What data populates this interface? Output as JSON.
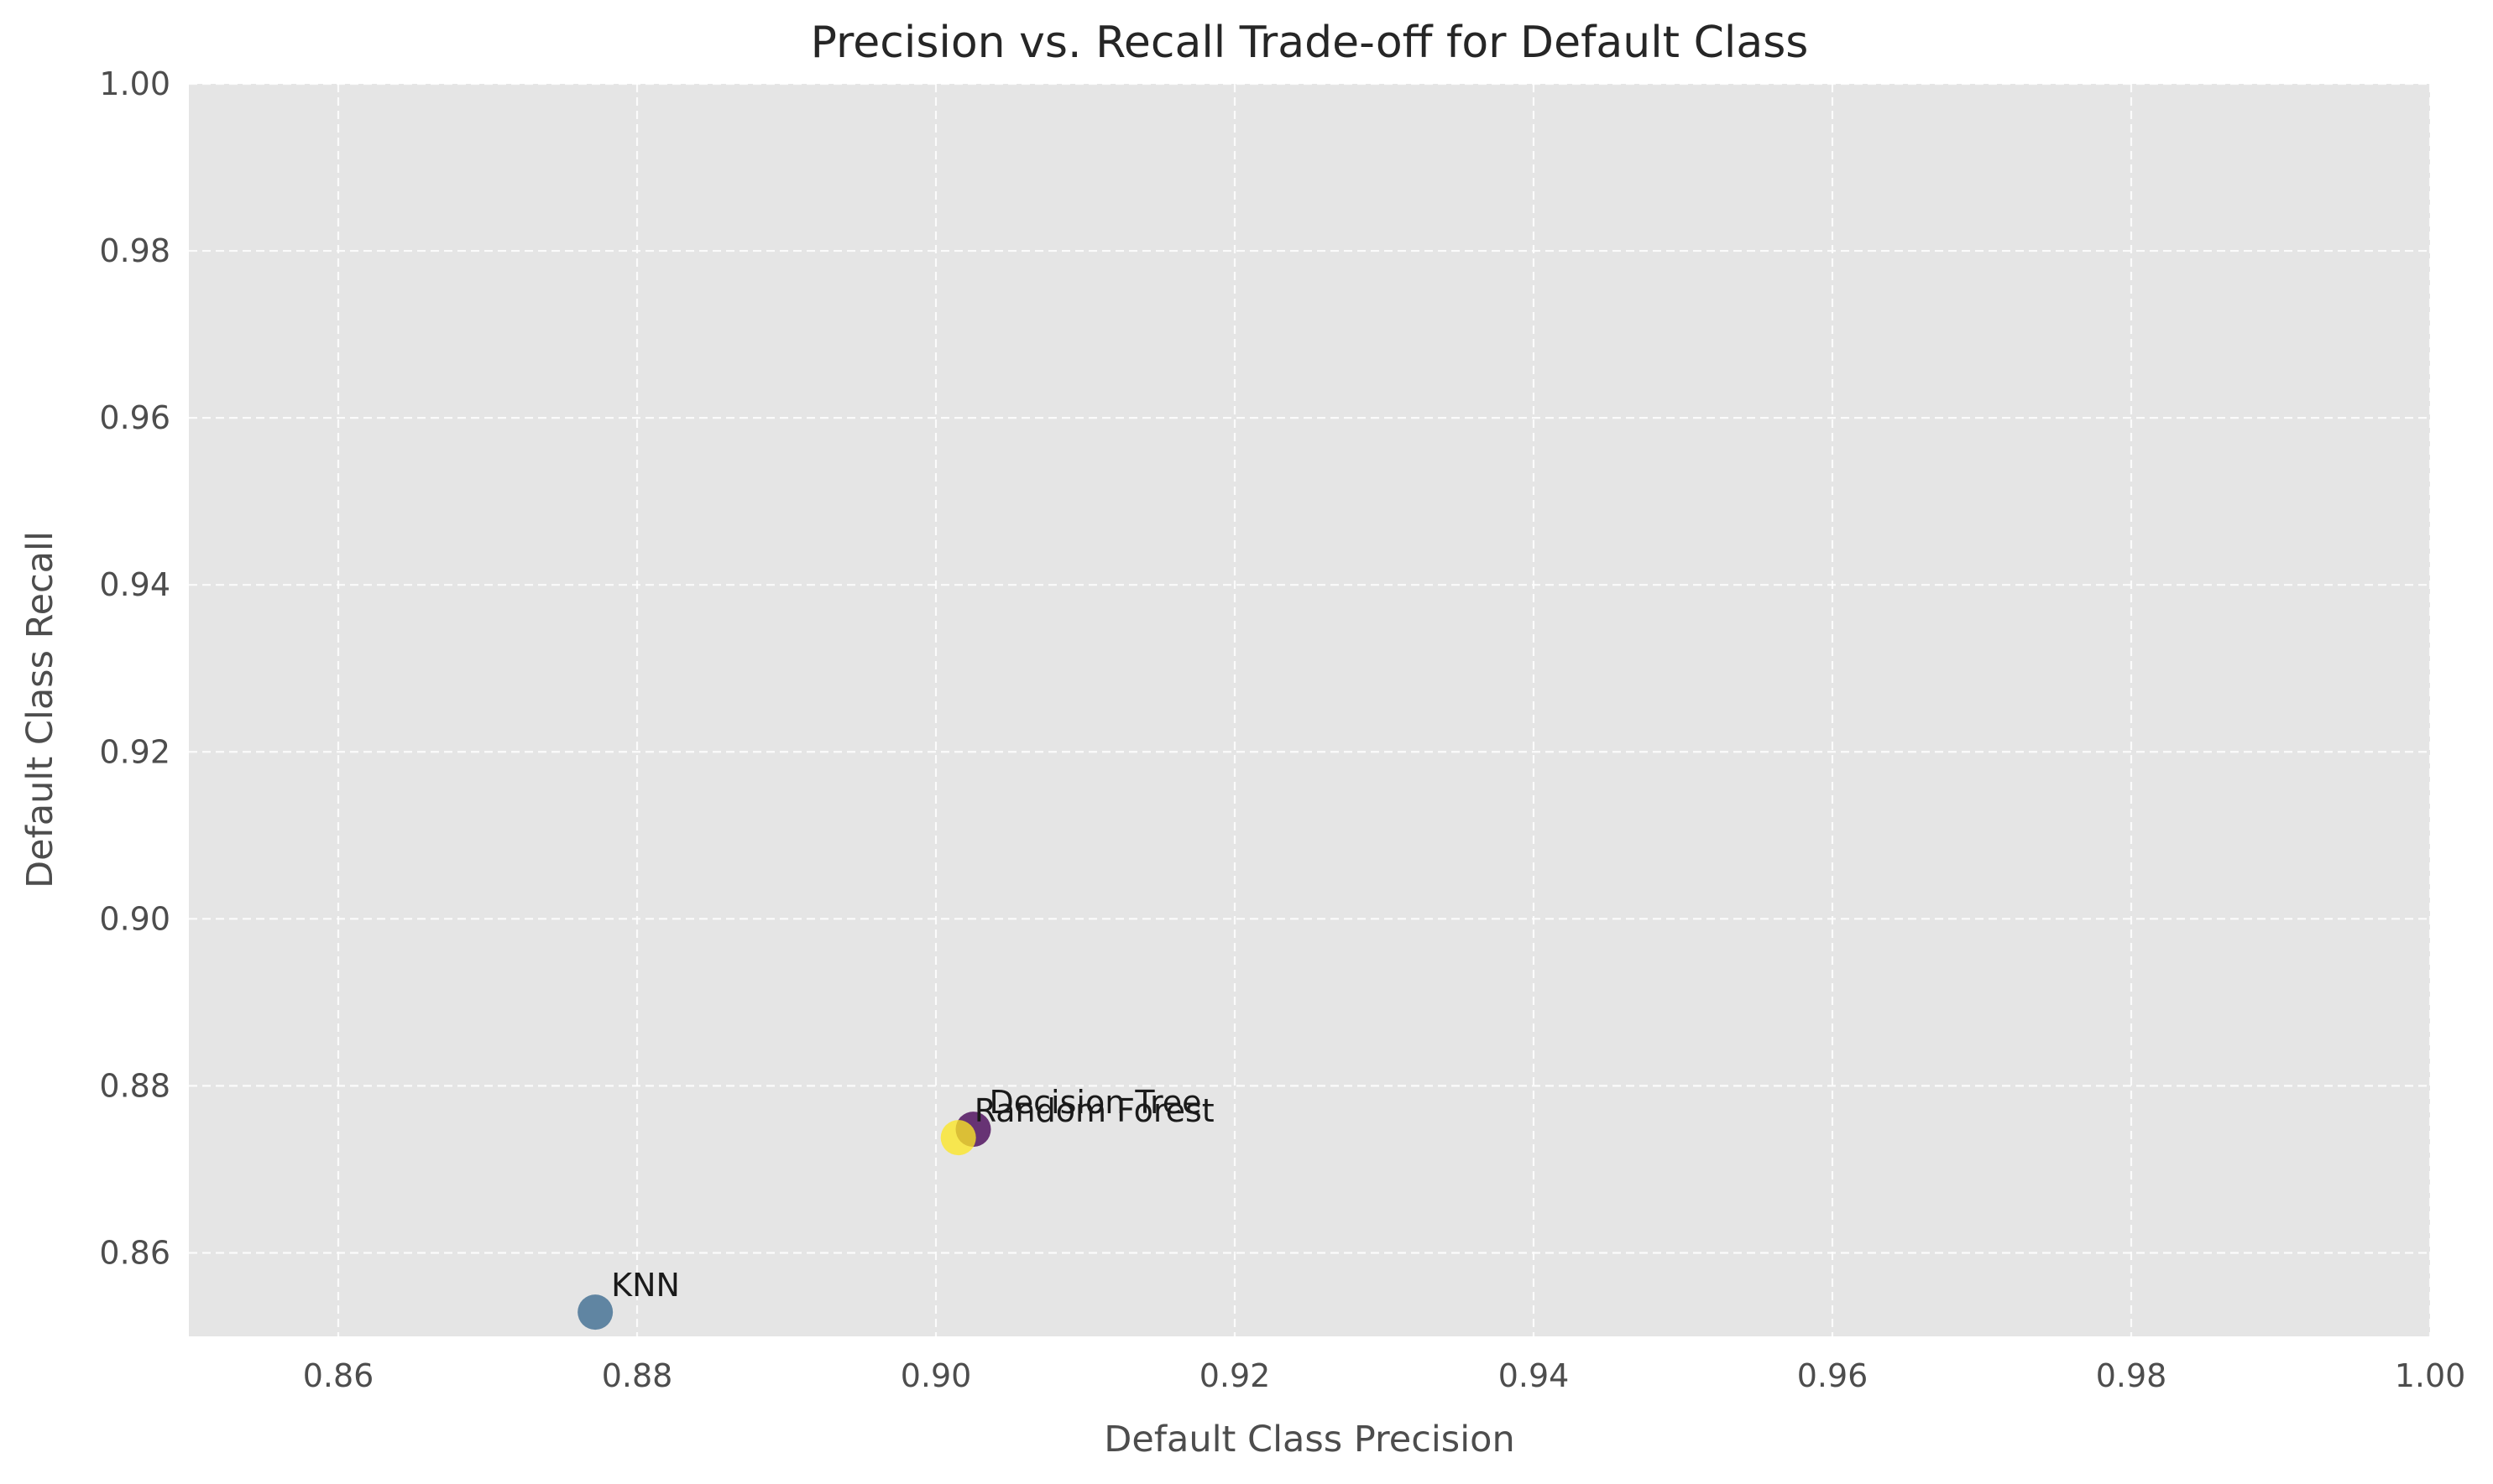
{
  "chart_data": {
    "type": "scatter",
    "title": "Precision vs. Recall Trade-off for Default Class",
    "xlabel": "Default Class Precision",
    "ylabel": "Default Class Recall",
    "xlim": [
      0.85,
      1.0
    ],
    "ylim": [
      0.85,
      1.0
    ],
    "grid": true,
    "x_ticks": [
      "0.86",
      "0.88",
      "0.90",
      "0.92",
      "0.94",
      "0.96",
      "0.98",
      "1.00"
    ],
    "y_ticks": [
      "0.86",
      "0.88",
      "0.90",
      "0.92",
      "0.94",
      "0.96",
      "0.98",
      "1.00"
    ],
    "points": [
      {
        "label": "Decision Tree",
        "x": 0.9025,
        "y": 0.8748,
        "color": "#440154"
      },
      {
        "label": "KNN",
        "x": 0.8772,
        "y": 0.8529,
        "color": "#3b6a8f"
      },
      {
        "label": "Random Forest",
        "x": 0.9015,
        "y": 0.8738,
        "color": "#fde725"
      }
    ],
    "colors": {
      "plot_background": "#e5e5e5",
      "grid": "#ffffff"
    }
  }
}
